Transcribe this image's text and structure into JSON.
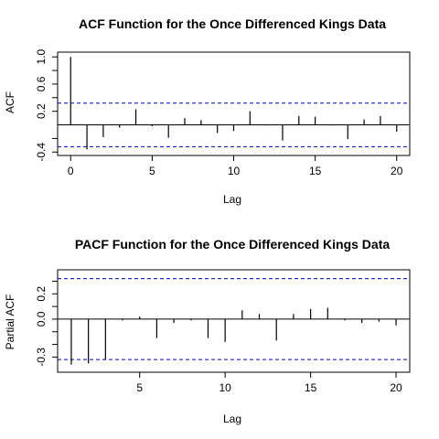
{
  "chart_data": [
    {
      "type": "bar",
      "subtype": "acf-spikes",
      "title": "ACF Function for the Once Differenced Kings Data",
      "xlabel": "Lag",
      "ylabel": "ACF",
      "xlim": [
        -0.8,
        20.8
      ],
      "ylim": [
        -0.45,
        1.07
      ],
      "x_ticks": [
        "0",
        "5",
        "10",
        "15",
        "20"
      ],
      "y_ticks": [
        "-0.4",
        "0.2",
        "0.6",
        "1.0"
      ],
      "extra_y_ticks": [
        -0.2,
        0.4,
        0.8
      ],
      "confidence_band": 0.32,
      "band_color": "#0000cc",
      "zero_line": true,
      "lags": [
        0,
        1,
        2,
        3,
        4,
        5,
        6,
        7,
        8,
        9,
        10,
        11,
        12,
        13,
        14,
        15,
        16,
        17,
        18,
        19,
        20
      ],
      "values": [
        1.0,
        -0.36,
        -0.18,
        -0.04,
        0.23,
        -0.02,
        -0.19,
        0.1,
        0.07,
        -0.12,
        -0.09,
        0.2,
        -0.01,
        -0.23,
        0.13,
        0.12,
        -0.01,
        -0.21,
        0.08,
        0.13,
        -0.1
      ]
    },
    {
      "type": "bar",
      "subtype": "acf-spikes",
      "title": "PACF Function for the Once Differenced Kings Data",
      "xlabel": "Lag",
      "ylabel": "Partial ACF",
      "xlim": [
        0.2,
        20.8
      ],
      "ylim": [
        -0.42,
        0.39
      ],
      "x_ticks": [
        "5",
        "10",
        "15",
        "20"
      ],
      "y_ticks": [
        "-0.3",
        "0.0",
        "0.2"
      ],
      "extra_y_ticks": [
        -0.2,
        -0.1,
        0.1,
        0.3
      ],
      "confidence_band": 0.32,
      "band_color": "#0000cc",
      "zero_line": true,
      "lags": [
        1,
        2,
        3,
        4,
        5,
        6,
        7,
        8,
        9,
        10,
        11,
        12,
        13,
        14,
        15,
        16,
        17,
        18,
        19,
        20
      ],
      "values": [
        -0.36,
        -0.35,
        -0.32,
        -0.01,
        0.02,
        -0.15,
        -0.03,
        -0.01,
        -0.15,
        -0.18,
        0.07,
        0.04,
        -0.17,
        0.04,
        0.08,
        0.09,
        -0.01,
        -0.03,
        -0.02,
        -0.05
      ]
    }
  ]
}
